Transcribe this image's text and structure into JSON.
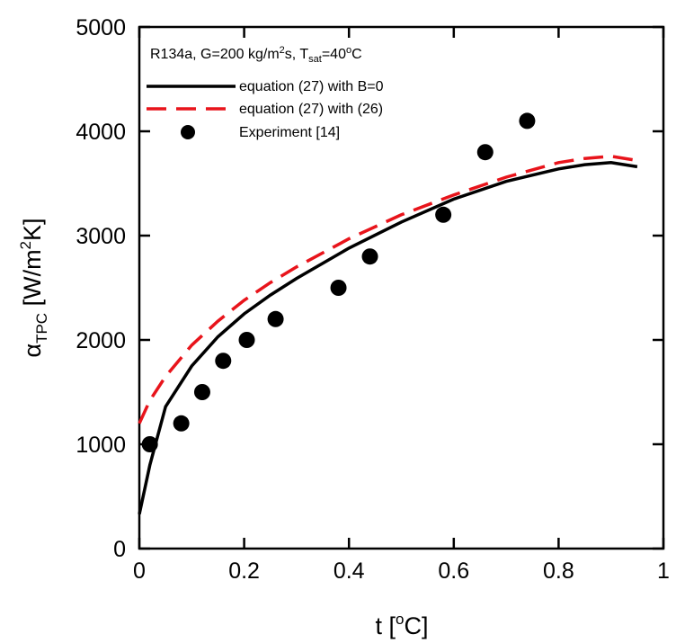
{
  "chart_data": {
    "type": "line",
    "xlabel": "t [°C]",
    "xlabel_parts": {
      "main": "t [",
      "sup": "o",
      "end": "C]"
    },
    "ylabel": "α_TPC [W/m²K]",
    "ylabel_parts": {
      "main": "α",
      "sub": "TPC",
      "mid": " [W/m",
      "sup": "2",
      "end": "K]"
    },
    "xlim": [
      0,
      1
    ],
    "ylim": [
      0,
      5000
    ],
    "x_ticks": [
      0,
      0.2,
      0.4,
      0.6,
      0.8,
      1
    ],
    "x_tick_labels": [
      "0",
      "0.2",
      "0.4",
      "0.6",
      "0.8",
      "1"
    ],
    "y_ticks": [
      0,
      1000,
      2000,
      3000,
      4000,
      5000
    ],
    "y_tick_labels": [
      "0",
      "1000",
      "2000",
      "3000",
      "4000",
      "5000"
    ],
    "grid": false,
    "legend_position": "top-left",
    "annotation": "R134a, G=200 kg/m²s, T_sat=40°C",
    "annotation_parts": {
      "pre": "R134a, G=200 kg/m",
      "sup1": "2",
      "mid": "s, T",
      "sub": "sat",
      "eq": "=40",
      "sup2": "o",
      "end": "C"
    },
    "series": [
      {
        "name": "equation (27) with B=0",
        "style": "solid",
        "color": "#000000",
        "x": [
          0,
          0.02,
          0.05,
          0.1,
          0.15,
          0.2,
          0.25,
          0.3,
          0.4,
          0.5,
          0.6,
          0.7,
          0.8,
          0.85,
          0.9,
          0.95
        ],
        "y": [
          330,
          800,
          1360,
          1750,
          2030,
          2250,
          2430,
          2590,
          2880,
          3130,
          3350,
          3520,
          3640,
          3680,
          3700,
          3660
        ]
      },
      {
        "name": "equation (27) with (26)",
        "style": "dashed",
        "color": "#e8141b",
        "x": [
          0,
          0.02,
          0.05,
          0.1,
          0.15,
          0.2,
          0.25,
          0.3,
          0.4,
          0.5,
          0.6,
          0.7,
          0.8,
          0.85,
          0.9,
          0.95
        ],
        "y": [
          1200,
          1420,
          1650,
          1950,
          2180,
          2380,
          2550,
          2700,
          2970,
          3200,
          3390,
          3560,
          3700,
          3740,
          3760,
          3720
        ]
      },
      {
        "name": "Experiment [14]",
        "style": "markers",
        "color": "#000000",
        "x": [
          0.02,
          0.08,
          0.12,
          0.16,
          0.205,
          0.26,
          0.38,
          0.44,
          0.58,
          0.66,
          0.74
        ],
        "y": [
          1000,
          1200,
          1500,
          1800,
          2000,
          2200,
          2500,
          2800,
          3200,
          3800,
          4100
        ]
      }
    ]
  }
}
